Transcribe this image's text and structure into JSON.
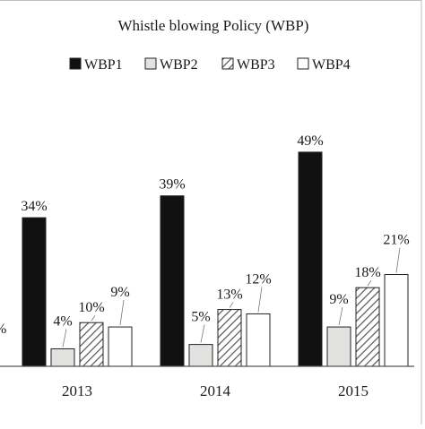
{
  "chart_data": {
    "type": "bar",
    "title": "Whistle blowing  Policy (WBP)",
    "categories": [
      "2013",
      "2014",
      "2015"
    ],
    "series": [
      {
        "name": "WBP1",
        "values": [
          34,
          39,
          49
        ],
        "labels": [
          "34%",
          "39%",
          "49%"
        ],
        "pattern": "solid-black"
      },
      {
        "name": "WBP2",
        "values": [
          4,
          5,
          9
        ],
        "labels": [
          "4%",
          "5%",
          "9%"
        ],
        "pattern": "light-gray"
      },
      {
        "name": "WBP3",
        "values": [
          10,
          13,
          18
        ],
        "labels": [
          "10%",
          "13%",
          "18%"
        ],
        "pattern": "diagonal-hatch"
      },
      {
        "name": "WBP4",
        "values": [
          9,
          12,
          21
        ],
        "labels": [
          "9%",
          "12%",
          "21%"
        ],
        "pattern": "white"
      }
    ],
    "ylim": [
      0,
      60
    ],
    "legend_position": "top",
    "grid": false,
    "edge_label": "%"
  },
  "colors": {
    "wbp1": "#111111",
    "wbp2": "#e2e2e0",
    "wbp3_fill": "#ffffff",
    "wbp3_hatch": "#555555",
    "wbp4": "#ffffff",
    "outline": "#222222",
    "axis": "#555555",
    "frame": "#bfbfbf"
  }
}
